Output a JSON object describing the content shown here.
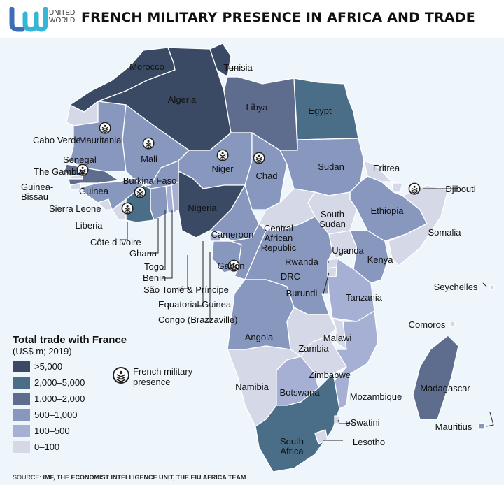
{
  "header": {
    "logo_text_1": "UNITED",
    "logo_text_2": "WORLD",
    "title": "FRENCH MILITARY PRESENCE IN AFRICA AND TRADE"
  },
  "legend": {
    "title": "Total trade with France",
    "subtitle": "(US$ m; 2019)",
    "categories": [
      {
        "label": ">5,000",
        "color": "#3b4a64"
      },
      {
        "label": "2,000–5,000",
        "color": "#4b6e88"
      },
      {
        "label": "1,000–2,000",
        "color": "#5e6d8e"
      },
      {
        "label": "500–1,000",
        "color": "#8797be"
      },
      {
        "label": "100–500",
        "color": "#a5b0d4"
      },
      {
        "label": "0–100",
        "color": "#d5d9e7"
      }
    ],
    "military_label_1": "French military",
    "military_label_2": "presence",
    "military_icon": "military-base-icon"
  },
  "source": {
    "prefix": "SOURCE:",
    "text": "IMF, THE ECONOMIST INTELLIGENCE UNIT, THE EIU AFRICA TEAM"
  },
  "countries": {
    "morocco": {
      "name": "Morocco",
      "trade": ">5,000",
      "military": false
    },
    "western_sahara": {
      "name": "",
      "trade": "0–100",
      "military": false
    },
    "algeria": {
      "name": "Algeria",
      "trade": ">5,000",
      "military": false
    },
    "tunisia": {
      "name": "Tunisia",
      "trade": ">5,000",
      "military": false
    },
    "libya": {
      "name": "Libya",
      "trade": "1,000–2,000",
      "military": false
    },
    "egypt": {
      "name": "Egypt",
      "trade": "2,000–5,000",
      "military": false
    },
    "mauritania": {
      "name": "Mauritania",
      "trade": "500–1,000",
      "military": true
    },
    "mali": {
      "name": "Mali",
      "trade": "500–1,000",
      "military": true
    },
    "niger": {
      "name": "Niger",
      "trade": "500–1,000",
      "military": true
    },
    "chad": {
      "name": "Chad",
      "trade": "500–1,000",
      "military": true
    },
    "sudan": {
      "name": "Sudan",
      "trade": "500–1,000",
      "military": false
    },
    "eritrea": {
      "name": "Eritrea",
      "trade": "0–100",
      "military": false
    },
    "djibouti": {
      "name": "Djibouti",
      "trade": "0–100",
      "military": true
    },
    "ethiopia": {
      "name": "Ethiopia",
      "trade": "500–1,000",
      "military": false
    },
    "somalia": {
      "name": "Somalia",
      "trade": "0–100",
      "military": false
    },
    "south_sudan": {
      "name": "South Sudan",
      "trade": "0–100",
      "military": false
    },
    "car": {
      "name": "Central African Republic",
      "trade": "0–100",
      "military": false
    },
    "cameroon": {
      "name": "Cameroon",
      "trade": "500–1,000",
      "military": false
    },
    "nigeria": {
      "name": "Nigeria",
      "trade": ">5,000",
      "military": false
    },
    "benin": {
      "name": "Benin",
      "trade": "100–500",
      "military": false
    },
    "togo": {
      "name": "Togo",
      "trade": "100–500",
      "military": false
    },
    "ghana": {
      "name": "Ghana",
      "trade": "500–1,000",
      "military": false
    },
    "burkina_faso": {
      "name": "Burkina Faso",
      "trade": "500–1,000",
      "military": true
    },
    "cote_divoire": {
      "name": "Côte d'Ivoire",
      "trade": "2,000–5,000",
      "military": true
    },
    "liberia": {
      "name": "Liberia",
      "trade": "0–100",
      "military": false
    },
    "sierra_leone": {
      "name": "Sierra Leone",
      "trade": "0–100",
      "military": false
    },
    "guinea": {
      "name": "Guinea",
      "trade": "500–1,000",
      "military": false
    },
    "guinea_bissau": {
      "name": "Guinea-Bissau",
      "trade": "0–100",
      "military": false
    },
    "gambia": {
      "name": "The Gambia",
      "trade": "0–100",
      "military": false
    },
    "senegal": {
      "name": "Senegal",
      "trade": "1,000–2,000",
      "military": true
    },
    "cabo_verde": {
      "name": "Cabo Verde",
      "trade": "0–100",
      "military": false
    },
    "gabon": {
      "name": "Gabon",
      "trade": "500–1,000",
      "military": true
    },
    "congo": {
      "name": "Congo (Brazzaville)",
      "trade": "500–1,000",
      "military": false
    },
    "eq_guinea": {
      "name": "Equatorial Guinea",
      "trade": "100–500",
      "military": false
    },
    "sao_tome": {
      "name": "São Tomé & Príncipe",
      "trade": "0–100",
      "military": false
    },
    "drc": {
      "name": "DRC",
      "trade": "500–1,000",
      "military": false
    },
    "uganda": {
      "name": "Uganda",
      "trade": "0–100",
      "military": false
    },
    "kenya": {
      "name": "Kenya",
      "trade": "500–1,000",
      "military": false
    },
    "rwanda": {
      "name": "Rwanda",
      "trade": "0–100",
      "military": false
    },
    "burundi": {
      "name": "Burundi",
      "trade": "0–100",
      "military": false
    },
    "tanzania": {
      "name": "Tanzania",
      "trade": "100–500",
      "military": false
    },
    "angola": {
      "name": "Angola",
      "trade": "500–1,000",
      "military": false
    },
    "zambia": {
      "name": "Zambia",
      "trade": "0–100",
      "military": false
    },
    "malawi": {
      "name": "Malawi",
      "trade": "0–100",
      "military": false
    },
    "mozambique": {
      "name": "Mozambique",
      "trade": "100–500",
      "military": false
    },
    "zimbabwe": {
      "name": "Zimbabwe",
      "trade": "0–100",
      "military": false
    },
    "namibia": {
      "name": "Namibia",
      "trade": "0–100",
      "military": false
    },
    "botswana": {
      "name": "Botswana",
      "trade": "100–500",
      "military": false
    },
    "south_africa": {
      "name": "South Africa",
      "trade": "2,000–5,000",
      "military": false
    },
    "lesotho": {
      "name": "Lesotho",
      "trade": "0–100",
      "military": false
    },
    "eswatini": {
      "name": "eSwatini",
      "trade": "0–100",
      "military": false
    },
    "madagascar": {
      "name": "Madagascar",
      "trade": "1,000–2,000",
      "military": false
    },
    "seychelles": {
      "name": "Seychelles",
      "trade": "0–100",
      "military": false
    },
    "comoros": {
      "name": "Comoros",
      "trade": "0–100",
      "military": false
    },
    "mauritius": {
      "name": "Mauritius",
      "trade": "500–1,000",
      "military": false
    }
  }
}
